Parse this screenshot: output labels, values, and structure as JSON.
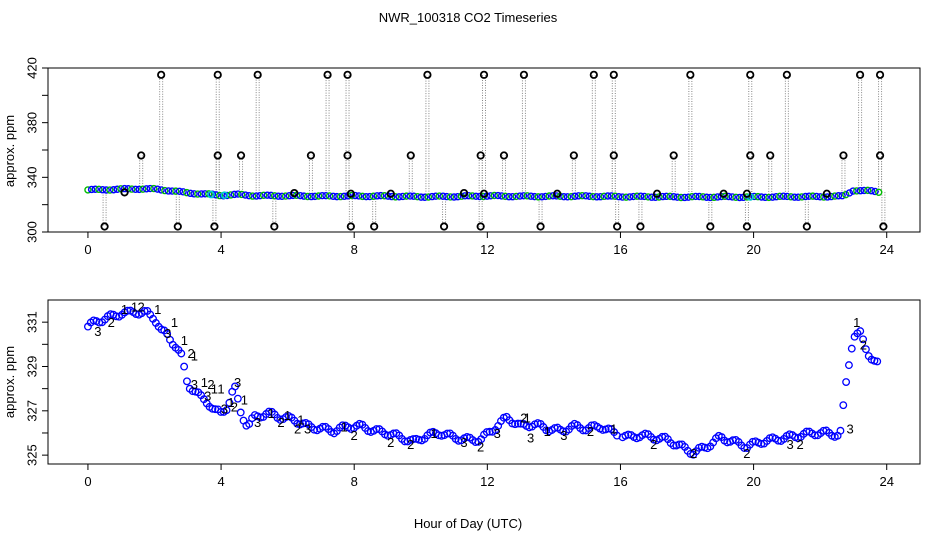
{
  "title": "NWR_100318  CO2 Timeseries",
  "xlabel": "Hour of Day (UTC)",
  "colors": {
    "points_main": "#0000ff",
    "outline": "#000000",
    "drop": "#888888",
    "flag1": "#ff0000",
    "flag2": "#00bb00",
    "flag3": "#0000ff",
    "cyan": "#00cccc"
  },
  "chart_data": [
    {
      "type": "scatter",
      "panel": "top",
      "ylabel": "approx. ppm",
      "xlim": [
        -1.2,
        25
      ],
      "ylim": [
        300,
        420
      ],
      "xticks": [
        "0",
        "4",
        "8",
        "12",
        "16",
        "20",
        "24"
      ],
      "yticks": [
        "300",
        "340",
        "380",
        "420"
      ],
      "baseline": {
        "x": [
          0,
          0.5,
          1,
          1.5,
          2,
          2.5,
          3,
          3.5,
          4,
          4.5,
          5,
          6,
          7,
          8,
          9,
          10,
          11,
          12,
          13,
          14,
          15,
          16,
          17,
          18,
          19,
          20,
          21,
          22,
          22.7,
          23,
          23.5,
          23.8
        ],
        "y": [
          330.8,
          331,
          331.3,
          331.6,
          331.4,
          330.2,
          328.6,
          327.8,
          326.8,
          327.4,
          326.6,
          326.5,
          326.2,
          326.3,
          326.2,
          325.8,
          326,
          326.4,
          326.1,
          326.1,
          326.2,
          325.9,
          325.8,
          325.6,
          325.7,
          325.6,
          325.8,
          325.9,
          326.2,
          330.5,
          330,
          329.2
        ]
      },
      "spikes": {
        "high_x": [
          2.2,
          3.9,
          5.1,
          7.2,
          7.8,
          10.2,
          11.9,
          13.1,
          15.2,
          15.8,
          18.1,
          19.9,
          21.0,
          23.2,
          23.8
        ],
        "high_y": [
          415,
          415,
          415,
          415,
          415,
          415,
          415,
          415,
          415,
          415,
          415,
          415,
          415,
          415,
          415
        ],
        "mid_x": [
          1.6,
          3.9,
          4.6,
          6.7,
          7.8,
          9.7,
          11.8,
          12.5,
          14.6,
          15.8,
          17.6,
          19.9,
          20.5,
          22.7,
          23.8
        ],
        "mid_y": [
          356,
          356,
          356,
          356,
          356,
          356,
          356,
          356,
          356,
          356,
          356,
          356,
          356,
          356,
          356
        ],
        "low_x": [
          0.5,
          2.7,
          3.8,
          5.6,
          7.9,
          8.6,
          10.7,
          11.8,
          13.6,
          15.9,
          16.6,
          18.7,
          19.8,
          21.6,
          23.9
        ],
        "low_y": [
          304,
          304,
          304,
          304,
          304,
          304,
          304,
          304,
          304,
          304,
          304,
          304,
          304,
          304,
          304
        ],
        "near_x": [
          1.1,
          6.2,
          7.9,
          9.1,
          11.3,
          11.9,
          14.1,
          17.1,
          19.1,
          19.8,
          22.2
        ],
        "near_y": [
          329,
          328.5,
          328,
          328,
          328.5,
          328,
          328,
          328,
          328,
          328,
          328
        ]
      }
    },
    {
      "type": "scatter",
      "panel": "bottom",
      "ylabel": "approx. ppm",
      "xlim": [
        -1.2,
        25
      ],
      "ylim": [
        324.6,
        332
      ],
      "xticks": [
        "0",
        "4",
        "8",
        "12",
        "16",
        "20",
        "24"
      ],
      "yticks": [
        "325",
        "327",
        "329",
        "331"
      ],
      "series": {
        "x": [
          0,
          0.2,
          0.4,
          0.6,
          0.8,
          1.0,
          1.2,
          1.4,
          1.6,
          1.8,
          2.0,
          2.2,
          2.4,
          2.6,
          2.8,
          3.0,
          3.2,
          3.4,
          3.6,
          3.8,
          4.0,
          4.2,
          4.4,
          4.6,
          4.8,
          5.0,
          5.4,
          5.8,
          6.2,
          6.6,
          7.0,
          7.4,
          7.8,
          8.2,
          8.6,
          9.0,
          9.4,
          9.8,
          10.2,
          10.6,
          11.0,
          11.4,
          11.8,
          12.2,
          12.6,
          13.0,
          13.4,
          13.8,
          14.2,
          14.6,
          15.0,
          15.4,
          15.8,
          16.2,
          16.6,
          17.0,
          17.4,
          17.8,
          18.2,
          18.6,
          19.0,
          19.4,
          19.8,
          20.2,
          20.6,
          21.0,
          21.4,
          21.8,
          22.2,
          22.6,
          22.8,
          23.0,
          23.2,
          23.4,
          23.6,
          23.8
        ],
        "y": [
          330.8,
          331.0,
          331.1,
          331.2,
          331.3,
          331.4,
          331.4,
          331.5,
          331.4,
          331.4,
          331.2,
          330.6,
          330.4,
          330.0,
          329.5,
          328.2,
          327.9,
          327.6,
          327.4,
          327.0,
          326.9,
          327.2,
          328.1,
          326.9,
          326.3,
          326.7,
          326.9,
          326.7,
          326.6,
          326.3,
          326.2,
          326.1,
          326.3,
          326.3,
          326.1,
          326.0,
          325.8,
          325.6,
          325.9,
          326.0,
          325.8,
          325.7,
          325.7,
          326.2,
          326.7,
          326.3,
          326.4,
          326.2,
          326.1,
          326.3,
          326.2,
          326.3,
          326.0,
          325.8,
          325.9,
          325.8,
          325.7,
          325.4,
          325.1,
          325.4,
          325.8,
          325.6,
          325.4,
          325.6,
          325.7,
          325.8,
          325.9,
          326.0,
          326.0,
          325.9,
          328.5,
          330.4,
          330.5,
          329.7,
          329.3,
          329.0
        ],
        "flag1_x": [
          0.9,
          1.2,
          1.9,
          2.4,
          2.7,
          3.0,
          3.3,
          3.6,
          3.8,
          4.1,
          4.5,
          5.3,
          5.8,
          6.2,
          7.5,
          10.2,
          13.0,
          13.6,
          15.6,
          22.9
        ],
        "flag1_y": [
          331.6,
          331.7,
          331.6,
          331.0,
          330.2,
          329.5,
          328.3,
          328.0,
          328.0,
          327.4,
          327.5,
          326.9,
          326.8,
          326.6,
          326.3,
          326.0,
          326.7,
          326.1,
          326.2,
          331.0
        ],
        "flag2_x": [
          0.5,
          1.4,
          2.9,
          3.5,
          4.2,
          5.6,
          6.1,
          7.8,
          8.9,
          9.5,
          11.6,
          12.9,
          14.9,
          16.8,
          18.0,
          19.6,
          21.2,
          23.1
        ],
        "flag2_y": [
          331.0,
          331.7,
          329.6,
          328.2,
          327.2,
          326.5,
          326.2,
          325.9,
          325.6,
          325.5,
          325.4,
          326.7,
          326.1,
          325.5,
          325.1,
          325.1,
          325.5,
          330.0
        ],
        "flag3_x": [
          0.1,
          2.2,
          3.0,
          3.4,
          3.9,
          4.3,
          4.9,
          6.4,
          11.1,
          12.1,
          13.1,
          14.1,
          20.9,
          22.7
        ],
        "flag3_y": [
          330.6,
          330.5,
          328.2,
          327.7,
          327.1,
          328.3,
          326.5,
          326.2,
          325.6,
          326.0,
          325.8,
          325.9,
          325.5,
          326.2
        ]
      }
    }
  ]
}
